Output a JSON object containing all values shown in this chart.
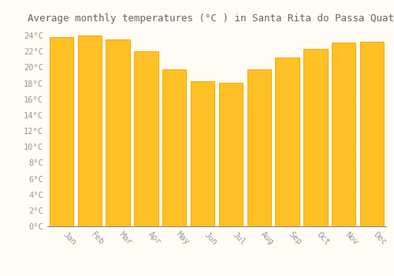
{
  "title": "Average monthly temperatures (°C ) in Santa Rita do Passa Quatro",
  "months": [
    "Jan",
    "Feb",
    "Mar",
    "Apr",
    "May",
    "Jun",
    "Jul",
    "Aug",
    "Sep",
    "Oct",
    "Nov",
    "Dec"
  ],
  "values": [
    23.8,
    24.0,
    23.5,
    22.0,
    19.7,
    18.3,
    18.1,
    19.7,
    21.2,
    22.3,
    23.1,
    23.2
  ],
  "bar_color_face": "#FFC125",
  "bar_color_edge": "#FFA500",
  "bar_width": 0.85,
  "ylim": [
    0,
    25
  ],
  "yticks": [
    0,
    2,
    4,
    6,
    8,
    10,
    12,
    14,
    16,
    18,
    20,
    22,
    24
  ],
  "ytick_labels": [
    "0°C",
    "2°C",
    "4°C",
    "6°C",
    "8°C",
    "10°C",
    "12°C",
    "14°C",
    "16°C",
    "18°C",
    "20°C",
    "22°C",
    "24°C"
  ],
  "background_color": "#FFFCF5",
  "grid_color": "#FFFFFF",
  "title_fontsize": 9,
  "tick_fontsize": 7.5,
  "font_family": "monospace",
  "label_color": "#999999",
  "title_color": "#666666"
}
